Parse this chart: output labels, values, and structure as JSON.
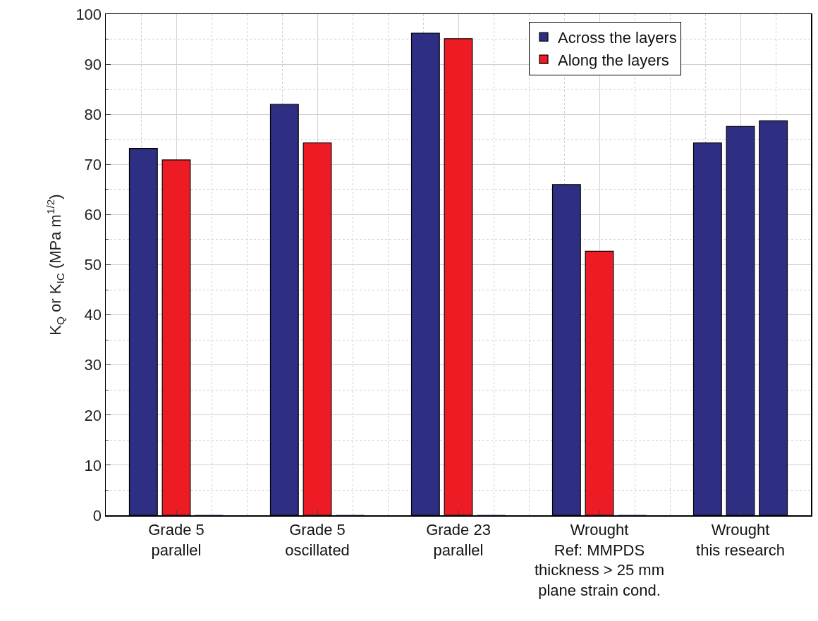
{
  "chart_data": {
    "type": "bar",
    "ylabel": "K$_{Q}$ or K$_{IC}$ (MPa m$^{1/2}$)",
    "categories": [
      "Grade 5\nparallel",
      "Grade 5\noscillated",
      "Grade 23\nparallel",
      "Wrought\nRef: MMPDS\nthickness > 25 mm\nplane strain cond.",
      "Wrought\nthis research"
    ],
    "series": [
      {
        "name": "Across the layers",
        "color": "#2e2e82",
        "values": [
          73.2,
          82.0,
          96.2,
          66.0,
          74.3
        ]
      },
      {
        "name": "Along the layers",
        "color": "#ed1c24",
        "colors": [
          null,
          null,
          null,
          null,
          "#2e2e82"
        ],
        "values": [
          70.9,
          74.3,
          95.1,
          52.7,
          77.6
        ]
      },
      {
        "color": "#2e2e82",
        "values": [
          0,
          0,
          0,
          0,
          78.7
        ]
      }
    ],
    "ylim": [
      0,
      100
    ],
    "yticks": [
      0,
      10,
      20,
      30,
      40,
      50,
      60,
      70,
      80,
      90,
      100
    ],
    "grid": true,
    "legend": "top right"
  }
}
